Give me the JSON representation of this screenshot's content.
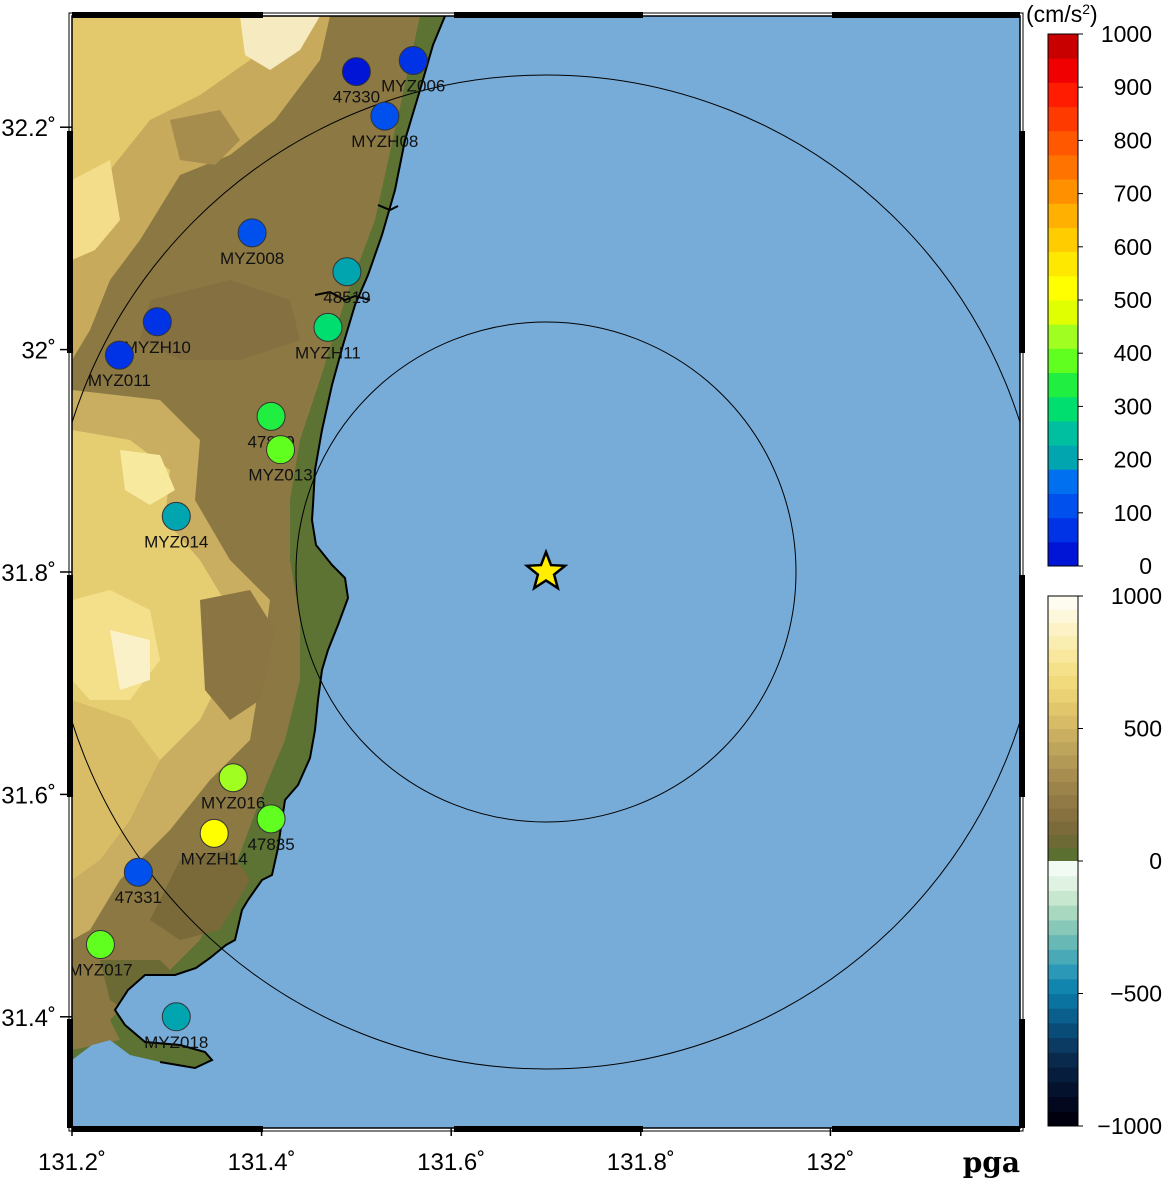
{
  "map": {
    "title": "pga",
    "lon_range": [
      131.2,
      132.0
    ],
    "lat_range": [
      31.3,
      32.3
    ],
    "lon_ticks": [
      "131.2˚",
      "131.4˚",
      "131.6˚",
      "131.8˚",
      "132˚"
    ],
    "lat_ticks": [
      "31.4˚",
      "31.6˚",
      "31.8˚",
      "32˚",
      "32.2˚"
    ],
    "ocean_color": "#77acd9",
    "epicenter": {
      "lon": 131.7,
      "lat": 31.8,
      "icon": "star-icon",
      "color": "#ffee00"
    },
    "stations": [
      {
        "name": "47330",
        "lon": 131.5,
        "lat": 32.25,
        "pga": 40
      },
      {
        "name": "MYZ006",
        "lon": 131.56,
        "lat": 32.26,
        "pga": 80
      },
      {
        "name": "MYZH08",
        "lon": 131.53,
        "lat": 32.21,
        "pga": 110
      },
      {
        "name": "MYZ008",
        "lon": 131.39,
        "lat": 32.105,
        "pga": 110
      },
      {
        "name": "48519",
        "lon": 131.49,
        "lat": 32.07,
        "pga": 210
      },
      {
        "name": "MYZH10",
        "lon": 131.29,
        "lat": 32.025,
        "pga": 60
      },
      {
        "name": "MYZ011",
        "lon": 131.25,
        "lat": 31.995,
        "pga": 90
      },
      {
        "name": "MYZH11",
        "lon": 131.47,
        "lat": 32.02,
        "pga": 280
      },
      {
        "name": "47830",
        "lon": 131.41,
        "lat": 31.94,
        "pga": 320
      },
      {
        "name": "MYZ013",
        "lon": 131.42,
        "lat": 31.91,
        "pga": 380
      },
      {
        "name": "MYZ014",
        "lon": 131.31,
        "lat": 31.85,
        "pga": 200
      },
      {
        "name": "MYZ016",
        "lon": 131.37,
        "lat": 31.615,
        "pga": 420
      },
      {
        "name": "MYZH14",
        "lon": 131.35,
        "lat": 31.565,
        "pga": 530
      },
      {
        "name": "47835",
        "lon": 131.41,
        "lat": 31.578,
        "pga": 380
      },
      {
        "name": "47331",
        "lon": 131.27,
        "lat": 31.53,
        "pga": 100
      },
      {
        "name": "MYZ017",
        "lon": 131.23,
        "lat": 31.465,
        "pga": 370
      },
      {
        "name": "MYZ018",
        "lon": 131.31,
        "lat": 31.4,
        "pga": 190
      }
    ]
  },
  "colorbar_pga": {
    "unit": "(cm/s",
    "unit_sup": "2",
    "unit_close": ")",
    "range": [
      0,
      1000
    ],
    "labels": [
      "1000",
      "900",
      "800",
      "700",
      "600",
      "500",
      "400",
      "300",
      "200",
      "100",
      "0"
    ],
    "colors": [
      "#0015d6",
      "#0033e6",
      "#0050ee",
      "#0070f0",
      "#00a5b0",
      "#00bfa0",
      "#00de70",
      "#20ee40",
      "#60ff20",
      "#a0ff20",
      "#e0ff00",
      "#ffff00",
      "#ffe800",
      "#ffcc00",
      "#ffb000",
      "#ff9000",
      "#ff7400",
      "#ff5800",
      "#ff3a00",
      "#ff1c00",
      "#f00000",
      "#c80000"
    ]
  },
  "colorbar_topo": {
    "range": [
      -1000,
      1000
    ],
    "labels": [
      "1000",
      "500",
      "0",
      "−500",
      "−1000"
    ],
    "colors_low": [
      "#00000f",
      "#03081f",
      "#05122e",
      "#071d3d",
      "#0a2a4d",
      "#0b3a62",
      "#0a4c78",
      "#0a5f8c",
      "#0a739f",
      "#1285ae",
      "#2b98b8",
      "#4aa9b7",
      "#68b8b6",
      "#88c8b9",
      "#a8d8c0",
      "#c7e8cf",
      "#e0f3e2",
      "#f2fbf3"
    ],
    "colors_high": [
      "#5b7030",
      "#6e6a35",
      "#7b6b3a",
      "#86713f",
      "#917a45",
      "#9c834a",
      "#a78d50",
      "#b29956",
      "#bea55c",
      "#caaf60",
      "#d7bb66",
      "#e2c66c",
      "#ead173",
      "#f1da7c",
      "#f5e18a",
      "#f8e79c",
      "#faedb0",
      "#fcf2c6",
      "#fdf7dc",
      "#fefcf1"
    ]
  }
}
